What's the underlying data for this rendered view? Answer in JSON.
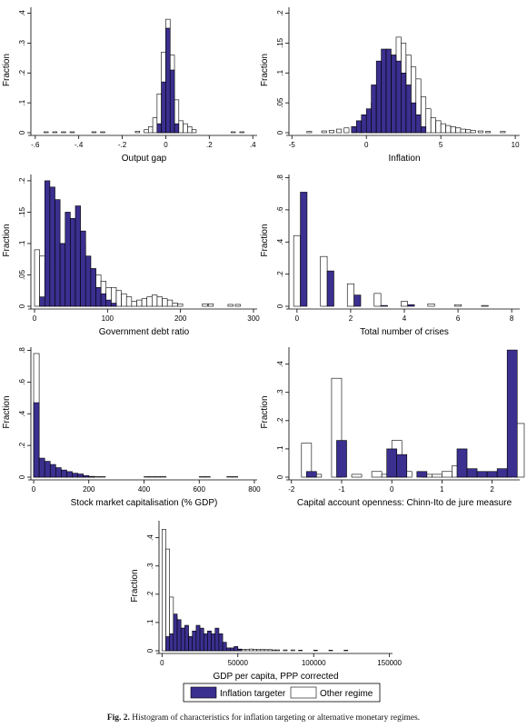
{
  "caption": {
    "label": "Fig. 2.",
    "text": "Histogram of characteristics for inflation targeting or alternative monetary regimes."
  },
  "legend": {
    "it_label": "Inflation targeter",
    "other_label": "Other regime"
  },
  "colors": {
    "it_fill": "#3b2f8f",
    "other_fill": "#ffffff",
    "stroke": "#000000"
  },
  "chart_data": [
    {
      "type": "histogram",
      "xlabel": "Output gap",
      "ylabel": "Fraction",
      "xlim": [
        -0.62,
        0.42
      ],
      "ylim": [
        0,
        0.42
      ],
      "xticks": [
        -0.6,
        -0.4,
        -0.2,
        0,
        0.2,
        0.4
      ],
      "xticklabels": [
        "-.6",
        "-.4",
        "-.2",
        "0",
        ".2",
        ".4"
      ],
      "yticks": [
        0,
        0.1,
        0.2,
        0.3,
        0.4
      ],
      "yticklabels": [
        "0",
        ".1",
        ".2",
        ".3",
        ".4"
      ],
      "bin_width": 0.02,
      "series": [
        {
          "name": "Other regime",
          "x": [
            -0.56,
            -0.52,
            -0.48,
            -0.44,
            -0.34,
            -0.3,
            -0.14,
            -0.1,
            -0.08,
            -0.06,
            -0.04,
            -0.02,
            0.0,
            0.02,
            0.04,
            0.06,
            0.08,
            0.1,
            0.12,
            0.3,
            0.34
          ],
          "y": [
            0.003,
            0.003,
            0.003,
            0.003,
            0.003,
            0.003,
            0.005,
            0.01,
            0.02,
            0.05,
            0.13,
            0.27,
            0.38,
            0.26,
            0.11,
            0.04,
            0.03,
            0.02,
            0.01,
            0.003,
            0.003
          ]
        },
        {
          "name": "Inflation targeter",
          "x": [
            -0.04,
            -0.02,
            0.0,
            0.02,
            0.04
          ],
          "y": [
            0.03,
            0.17,
            0.35,
            0.21,
            0.03
          ]
        }
      ]
    },
    {
      "type": "histogram",
      "xlabel": "Inflation",
      "ylabel": "Fraction",
      "xlim": [
        -5.2,
        10.3
      ],
      "ylim": [
        0,
        0.21
      ],
      "xticks": [
        -5,
        0,
        5,
        10
      ],
      "xticklabels": [
        "-5",
        "0",
        "5",
        "10"
      ],
      "yticks": [
        0,
        0.05,
        0.1,
        0.15,
        0.2
      ],
      "yticklabels": [
        "0",
        ".05",
        ".1",
        ".15",
        ".2"
      ],
      "bin_width": 0.33,
      "series": [
        {
          "name": "Other regime",
          "x": [
            -4.0,
            -3.0,
            -2.5,
            -2.0,
            -1.5,
            -1.0,
            -0.5,
            0.0,
            0.33,
            0.67,
            1.0,
            1.33,
            1.67,
            2.0,
            2.33,
            2.67,
            3.0,
            3.33,
            3.67,
            4.0,
            4.33,
            4.67,
            5.0,
            5.33,
            5.67,
            6.0,
            6.33,
            6.67,
            7.0,
            7.5,
            8.0,
            9.0
          ],
          "y": [
            0.002,
            0.003,
            0.004,
            0.006,
            0.008,
            0.01,
            0.015,
            0.02,
            0.05,
            0.08,
            0.09,
            0.13,
            0.13,
            0.16,
            0.15,
            0.13,
            0.11,
            0.09,
            0.06,
            0.04,
            0.025,
            0.02,
            0.015,
            0.012,
            0.01,
            0.008,
            0.006,
            0.005,
            0.004,
            0.003,
            0.002,
            0.002
          ]
        },
        {
          "name": "Inflation targeter",
          "x": [
            -1.0,
            -0.67,
            -0.33,
            0.0,
            0.33,
            0.67,
            1.0,
            1.33,
            1.67,
            2.0,
            2.33,
            2.67,
            3.0,
            3.33,
            3.67
          ],
          "y": [
            0.01,
            0.02,
            0.03,
            0.04,
            0.08,
            0.12,
            0.14,
            0.14,
            0.13,
            0.12,
            0.1,
            0.08,
            0.05,
            0.03,
            0.01
          ]
        }
      ]
    },
    {
      "type": "histogram",
      "xlabel": "Government debt ratio",
      "ylabel": "Fraction",
      "xlim": [
        -5,
        305
      ],
      "ylim": [
        0,
        0.21
      ],
      "xticks": [
        0,
        100,
        200,
        300
      ],
      "xticklabels": [
        "0",
        "100",
        "200",
        "300"
      ],
      "yticks": [
        0,
        0.05,
        0.1,
        0.15,
        0.2
      ],
      "yticklabels": [
        "0",
        ".05",
        ".1",
        ".15",
        ".2"
      ],
      "bin_width": 7,
      "series": [
        {
          "name": "Other regime",
          "x": [
            0,
            7,
            14,
            21,
            28,
            35,
            42,
            49,
            56,
            63,
            70,
            77,
            84,
            91,
            98,
            105,
            112,
            119,
            126,
            133,
            140,
            147,
            154,
            161,
            168,
            175,
            182,
            189,
            196,
            230,
            238,
            265,
            275
          ],
          "y": [
            0.09,
            0.08,
            0.07,
            0.07,
            0.08,
            0.1,
            0.09,
            0.11,
            0.12,
            0.1,
            0.08,
            0.06,
            0.05,
            0.04,
            0.03,
            0.03,
            0.025,
            0.02,
            0.015,
            0.008,
            0.01,
            0.012,
            0.015,
            0.018,
            0.015,
            0.012,
            0.01,
            0.005,
            0.004,
            0.004,
            0.004,
            0.003,
            0.003
          ]
        },
        {
          "name": "Inflation targeter",
          "x": [
            7,
            14,
            21,
            28,
            35,
            42,
            49,
            56,
            63,
            70,
            77,
            84,
            91,
            98,
            105
          ],
          "y": [
            0.015,
            0.2,
            0.19,
            0.17,
            0.1,
            0.15,
            0.14,
            0.16,
            0.12,
            0.08,
            0.06,
            0.03,
            0.02,
            0.01,
            0.005
          ]
        }
      ]
    },
    {
      "type": "histogram",
      "xlabel": "Total number of crises",
      "ylabel": "Fraction",
      "xlim": [
        -0.3,
        8.3
      ],
      "ylim": [
        0,
        0.82
      ],
      "xticks": [
        0,
        2,
        4,
        6,
        8
      ],
      "xticklabels": [
        "0",
        "2",
        "4",
        "6",
        "8"
      ],
      "yticks": [
        0,
        0.2,
        0.4,
        0.6,
        0.8
      ],
      "yticklabels": [
        "0",
        ".2",
        ".4",
        ".6",
        ".8"
      ],
      "bin_width": 0.25,
      "series": [
        {
          "name": "Other regime",
          "x": [
            -0.125,
            0.875,
            1.875,
            2.875,
            3.875,
            4.875,
            5.875,
            6.875
          ],
          "y": [
            0.44,
            0.31,
            0.14,
            0.08,
            0.03,
            0.015,
            0.01,
            0.005
          ]
        },
        {
          "name": "Inflation targeter",
          "x": [
            0.125,
            1.125,
            2.125,
            3.125,
            4.125
          ],
          "y": [
            0.71,
            0.22,
            0.07,
            0.005,
            0.01
          ]
        }
      ]
    },
    {
      "type": "histogram",
      "xlabel": "Stock market capitalisation (% GDP)",
      "ylabel": "Fraction",
      "xlim": [
        -10,
        810
      ],
      "ylim": [
        0,
        0.82
      ],
      "xticks": [
        0,
        200,
        400,
        600,
        800
      ],
      "xticklabels": [
        "0",
        "200",
        "400",
        "600",
        "800"
      ],
      "yticks": [
        0,
        0.2,
        0.4,
        0.6,
        0.8
      ],
      "yticklabels": [
        "0",
        ".2",
        ".4",
        ".6",
        ".8"
      ],
      "bin_width": 20,
      "series": [
        {
          "name": "Other regime",
          "x": [
            0,
            20,
            40,
            60,
            80,
            100,
            120,
            140,
            160,
            180,
            200,
            220,
            240,
            400,
            420,
            440,
            460,
            600,
            620,
            700,
            720
          ],
          "y": [
            0.78,
            0.08,
            0.05,
            0.03,
            0.02,
            0.015,
            0.01,
            0.008,
            0.006,
            0.005,
            0.004,
            0.003,
            0.003,
            0.003,
            0.003,
            0.003,
            0.003,
            0.003,
            0.003,
            0.003,
            0.003
          ]
        },
        {
          "name": "Inflation targeter",
          "x": [
            0,
            20,
            40,
            60,
            80,
            100,
            120,
            140,
            160,
            180,
            200
          ],
          "y": [
            0.47,
            0.12,
            0.1,
            0.08,
            0.06,
            0.045,
            0.035,
            0.025,
            0.02,
            0.01,
            0.005
          ]
        }
      ]
    },
    {
      "type": "histogram",
      "xlabel": "Capital account openness: Chinn-Ito de jure measure",
      "ylabel": "Fraction",
      "xlim": [
        -2.05,
        2.55
      ],
      "ylim": [
        0,
        0.46
      ],
      "xticks": [
        -2,
        -1,
        0,
        1,
        2
      ],
      "xticklabels": [
        "-2",
        "-1",
        "0",
        "1",
        "2"
      ],
      "yticks": [
        0,
        0.1,
        0.2,
        0.3,
        0.4
      ],
      "yticklabels": [
        "0",
        ".1",
        ".2",
        ".3",
        ".4"
      ],
      "bin_width": 0.2,
      "series": [
        {
          "name": "Other regime",
          "x": [
            -1.8,
            -1.6,
            -1.2,
            -0.8,
            -0.4,
            -0.2,
            0.0,
            0.2,
            0.6,
            0.8,
            1.0,
            1.2,
            1.4,
            1.6,
            1.8,
            2.0,
            2.2,
            2.44
          ],
          "y": [
            0.12,
            0.01,
            0.35,
            0.01,
            0.02,
            0.01,
            0.13,
            0.02,
            0.01,
            0.01,
            0.02,
            0.04,
            0.02,
            0.02,
            0.02,
            0.02,
            0.02,
            0.19
          ]
        },
        {
          "name": "Inflation targeter",
          "x": [
            -1.7,
            -1.1,
            -0.1,
            0.1,
            0.5,
            1.3,
            1.5,
            1.7,
            1.9,
            2.1,
            2.3
          ],
          "y": [
            0.02,
            0.13,
            0.1,
            0.08,
            0.02,
            0.1,
            0.03,
            0.02,
            0.02,
            0.03,
            0.45
          ]
        }
      ]
    },
    {
      "type": "histogram",
      "xlabel": "GDP per capita, PPP corrected",
      "ylabel": "Fraction",
      "xlim": [
        -2000,
        152000
      ],
      "ylim": [
        0,
        0.46
      ],
      "xticks": [
        0,
        50000,
        100000,
        150000
      ],
      "xticklabels": [
        "0",
        "50000",
        "100000",
        "150000"
      ],
      "yticks": [
        0,
        0.1,
        0.2,
        0.3,
        0.4
      ],
      "yticklabels": [
        "0",
        ".1",
        ".2",
        ".3",
        ".4"
      ],
      "bin_width": 2500,
      "series": [
        {
          "name": "Other regime",
          "x": [
            0,
            2500,
            5000,
            7500,
            10000,
            12500,
            15000,
            17500,
            20000,
            22500,
            25000,
            27500,
            30000,
            32500,
            35000,
            37500,
            40000,
            42500,
            45000,
            47500,
            50000,
            52500,
            55000,
            57500,
            60000,
            62500,
            65000,
            67500,
            70000,
            72500,
            75000,
            80000,
            85000,
            90000,
            100000,
            110000,
            120000
          ],
          "y": [
            0.43,
            0.36,
            0.19,
            0.12,
            0.1,
            0.08,
            0.06,
            0.05,
            0.04,
            0.04,
            0.03,
            0.025,
            0.02,
            0.02,
            0.015,
            0.012,
            0.01,
            0.008,
            0.007,
            0.006,
            0.006,
            0.005,
            0.005,
            0.006,
            0.005,
            0.004,
            0.005,
            0.004,
            0.004,
            0.003,
            0.003,
            0.003,
            0.003,
            0.002,
            0.002,
            0.002,
            0.002
          ]
        },
        {
          "name": "Inflation targeter",
          "x": [
            2500,
            5000,
            7500,
            10000,
            12500,
            15000,
            17500,
            20000,
            22500,
            25000,
            27500,
            30000,
            32500,
            35000,
            37500,
            40000,
            42500,
            45000,
            47500,
            50000
          ],
          "y": [
            0.05,
            0.06,
            0.13,
            0.11,
            0.08,
            0.09,
            0.05,
            0.07,
            0.09,
            0.08,
            0.06,
            0.07,
            0.06,
            0.08,
            0.06,
            0.03,
            0.01,
            0.01,
            0.015,
            0.005
          ]
        }
      ]
    }
  ]
}
